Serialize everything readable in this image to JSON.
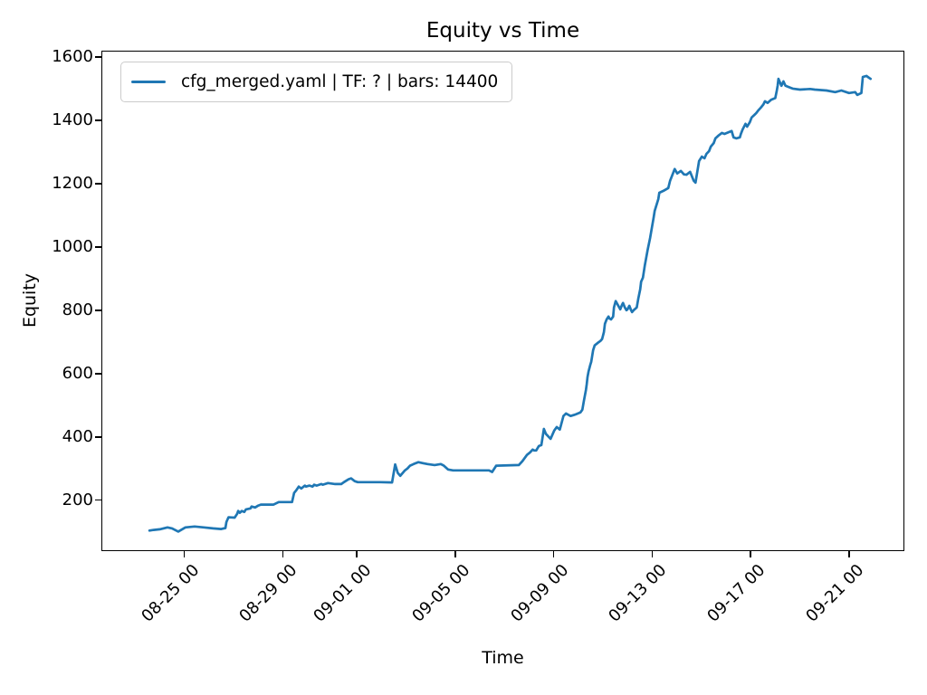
{
  "chart_data": {
    "type": "line",
    "title": "Equity vs Time",
    "xlabel": "Time",
    "ylabel": "Equity",
    "grid": false,
    "legend_position": "upper left",
    "line_color": "#1f77b4",
    "frame_color": "#000000",
    "legend_border_color": "#cbcbcb",
    "ylim": [
      42,
      1617
    ],
    "xlim_hours_since_aug1": [
      496,
      1277
    ],
    "y_ticks": [
      200,
      400,
      600,
      800,
      1000,
      1200,
      1400,
      1600
    ],
    "x_ticks": [
      {
        "label": "08-25 00",
        "t": "08-25 00:00"
      },
      {
        "label": "08-29 00",
        "t": "08-29 00:00"
      },
      {
        "label": "09-01 00",
        "t": "09-01 00:00"
      },
      {
        "label": "09-05 00",
        "t": "09-05 00:00"
      },
      {
        "label": "09-09 00",
        "t": "09-09 00:00"
      },
      {
        "label": "09-13 00",
        "t": "09-13 00:00"
      },
      {
        "label": "09-17 00",
        "t": "09-17 00:00"
      },
      {
        "label": "09-21 00",
        "t": "09-21 00:00"
      }
    ],
    "series": [
      {
        "name": "cfg_merged.yaml | TF: ? | bars: 14400",
        "color": "#1f77b4",
        "points": [
          [
            "08-23 14:00",
            104
          ],
          [
            "08-23 18:00",
            106
          ],
          [
            "08-24 00:00",
            108
          ],
          [
            "08-24 07:30",
            114
          ],
          [
            "08-24 12:00",
            111
          ],
          [
            "08-24 18:00",
            101
          ],
          [
            "08-25 01:00",
            114
          ],
          [
            "08-25 10:00",
            117
          ],
          [
            "08-25 19:00",
            114
          ],
          [
            "08-26 04:00",
            111
          ],
          [
            "08-26 12:00",
            109
          ],
          [
            "08-26 16:00",
            112
          ],
          [
            "08-26 17:00",
            131
          ],
          [
            "08-26 19:00",
            146
          ],
          [
            "08-27 01:00",
            145
          ],
          [
            "08-27 03:30",
            157
          ],
          [
            "08-27 04:30",
            166
          ],
          [
            "08-27 06:00",
            160
          ],
          [
            "08-27 08:00",
            166
          ],
          [
            "08-27 10:30",
            163
          ],
          [
            "08-27 12:00",
            171
          ],
          [
            "08-27 16:30",
            174
          ],
          [
            "08-27 17:30",
            180
          ],
          [
            "08-27 21:00",
            177
          ],
          [
            "08-28 00:00",
            183
          ],
          [
            "08-28 02:30",
            186
          ],
          [
            "08-28 15:00",
            186
          ],
          [
            "08-28 20:00",
            194
          ],
          [
            "08-29 09:00",
            194
          ],
          [
            "08-29 11:00",
            223
          ],
          [
            "08-29 13:00",
            231
          ],
          [
            "08-29 15:30",
            243
          ],
          [
            "08-29 18:00",
            237
          ],
          [
            "08-29 21:30",
            246
          ],
          [
            "08-29 22:30",
            243
          ],
          [
            "08-30 02:00",
            246
          ],
          [
            "08-30 05:00",
            243
          ],
          [
            "08-30 06:30",
            249
          ],
          [
            "08-30 09:00",
            246
          ],
          [
            "08-30 13:30",
            251
          ],
          [
            "08-30 15:00",
            249
          ],
          [
            "08-30 20:00",
            254
          ],
          [
            "08-31 03:00",
            251
          ],
          [
            "08-31 09:00",
            251
          ],
          [
            "08-31 11:30",
            257
          ],
          [
            "08-31 16:00",
            266
          ],
          [
            "08-31 18:30",
            269
          ],
          [
            "08-31 22:00",
            260
          ],
          [
            "09-01 01:00",
            257
          ],
          [
            "09-01 23:00",
            257
          ],
          [
            "09-02 10:30",
            256
          ],
          [
            "09-02 13:30",
            313
          ],
          [
            "09-02 16:00",
            286
          ],
          [
            "09-02 18:30",
            277
          ],
          [
            "09-02 23:00",
            294
          ],
          [
            "09-03 01:30",
            300
          ],
          [
            "09-03 04:00",
            309
          ],
          [
            "09-03 07:30",
            314
          ],
          [
            "09-03 12:00",
            320
          ],
          [
            "09-03 16:30",
            317
          ],
          [
            "09-03 21:00",
            314
          ],
          [
            "09-04 04:00",
            311
          ],
          [
            "09-04 10:00",
            314
          ],
          [
            "09-04 13:00",
            309
          ],
          [
            "09-04 17:00",
            297
          ],
          [
            "09-04 22:00",
            294
          ],
          [
            "09-06 09:00",
            294
          ],
          [
            "09-06 12:00",
            289
          ],
          [
            "09-06 16:00",
            309
          ],
          [
            "09-07 14:00",
            311
          ],
          [
            "09-07 17:30",
            323
          ],
          [
            "09-07 22:00",
            343
          ],
          [
            "09-08 01:00",
            351
          ],
          [
            "09-08 03:30",
            360
          ],
          [
            "09-08 05:00",
            357
          ],
          [
            "09-08 07:00",
            357
          ],
          [
            "09-08 09:30",
            371
          ],
          [
            "09-08 12:00",
            374
          ],
          [
            "09-08 14:30",
            425
          ],
          [
            "09-08 16:30",
            409
          ],
          [
            "09-08 21:00",
            394
          ],
          [
            "09-09 00:30",
            420
          ],
          [
            "09-09 03:00",
            431
          ],
          [
            "09-09 06:00",
            423
          ],
          [
            "09-09 09:30",
            466
          ],
          [
            "09-09 12:00",
            474
          ],
          [
            "09-09 16:30",
            466
          ],
          [
            "09-09 21:30",
            471
          ],
          [
            "09-10 02:00",
            477
          ],
          [
            "09-10 04:00",
            486
          ],
          [
            "09-10 05:30",
            514
          ],
          [
            "09-10 07:30",
            549
          ],
          [
            "09-10 08:15",
            566
          ],
          [
            "09-10 09:00",
            589
          ],
          [
            "09-10 10:00",
            606
          ],
          [
            "09-10 11:45",
            628
          ],
          [
            "09-10 12:40",
            637
          ],
          [
            "09-10 14:30",
            674
          ],
          [
            "09-10 16:00",
            689
          ],
          [
            "09-10 19:00",
            697
          ],
          [
            "09-10 21:30",
            703
          ],
          [
            "09-10 23:15",
            709
          ],
          [
            "09-11 01:00",
            731
          ],
          [
            "09-11 02:00",
            757
          ],
          [
            "09-11 03:40",
            771
          ],
          [
            "09-11 05:30",
            780
          ],
          [
            "09-11 06:20",
            774
          ],
          [
            "09-11 08:00",
            771
          ],
          [
            "09-11 10:00",
            780
          ],
          [
            "09-11 10:45",
            809
          ],
          [
            "09-11 12:30",
            829
          ],
          [
            "09-11 15:00",
            814
          ],
          [
            "09-11 17:00",
            803
          ],
          [
            "09-11 18:40",
            817
          ],
          [
            "09-11 19:35",
            823
          ],
          [
            "09-11 21:20",
            809
          ],
          [
            "09-11 23:00",
            800
          ],
          [
            "09-12 00:00",
            803
          ],
          [
            "09-12 01:45",
            814
          ],
          [
            "09-12 03:30",
            800
          ],
          [
            "09-12 04:25",
            794
          ],
          [
            "09-12 06:00",
            800
          ],
          [
            "09-12 09:00",
            809
          ],
          [
            "09-12 10:30",
            837
          ],
          [
            "09-12 12:20",
            866
          ],
          [
            "09-12 13:15",
            890
          ],
          [
            "09-12 15:00",
            903
          ],
          [
            "09-12 16:45",
            940
          ],
          [
            "09-12 19:30",
            989
          ],
          [
            "09-12 22:00",
            1028
          ],
          [
            "09-13 00:00",
            1066
          ],
          [
            "09-13 01:30",
            1094
          ],
          [
            "09-13 02:30",
            1114
          ],
          [
            "09-13 06:00",
            1151
          ],
          [
            "09-13 07:00",
            1171
          ],
          [
            "09-13 11:00",
            1177
          ],
          [
            "09-13 15:45",
            1186
          ],
          [
            "09-13 17:30",
            1209
          ],
          [
            "09-13 22:00",
            1246
          ],
          [
            "09-14 00:30",
            1232
          ],
          [
            "09-14 04:00",
            1240
          ],
          [
            "09-14 07:00",
            1229
          ],
          [
            "09-14 09:30",
            1228
          ],
          [
            "09-14 13:00",
            1237
          ],
          [
            "09-14 16:30",
            1209
          ],
          [
            "09-14 18:15",
            1203
          ],
          [
            "09-14 21:45",
            1271
          ],
          [
            "09-15 00:30",
            1285
          ],
          [
            "09-15 03:00",
            1280
          ],
          [
            "09-15 05:00",
            1294
          ],
          [
            "09-15 07:30",
            1303
          ],
          [
            "09-15 09:15",
            1317
          ],
          [
            "09-15 12:00",
            1328
          ],
          [
            "09-15 13:40",
            1343
          ],
          [
            "09-15 16:20",
            1351
          ],
          [
            "09-15 20:00",
            1360
          ],
          [
            "09-15 22:30",
            1357
          ],
          [
            "09-16 03:00",
            1363
          ],
          [
            "09-16 05:30",
            1366
          ],
          [
            "09-16 07:20",
            1346
          ],
          [
            "09-16 10:00",
            1343
          ],
          [
            "09-16 13:30",
            1346
          ],
          [
            "09-16 14:30",
            1357
          ],
          [
            "09-16 16:10",
            1371
          ],
          [
            "09-16 19:00",
            1389
          ],
          [
            "09-16 20:35",
            1380
          ],
          [
            "09-16 23:15",
            1394
          ],
          [
            "09-17 01:00",
            1409
          ],
          [
            "09-17 03:40",
            1417
          ],
          [
            "09-17 05:30",
            1423
          ],
          [
            "09-17 07:10",
            1430
          ],
          [
            "09-17 10:00",
            1440
          ],
          [
            "09-17 12:30",
            1450
          ],
          [
            "09-17 14:00",
            1460
          ],
          [
            "09-17 16:30",
            1455
          ],
          [
            "09-17 20:00",
            1465
          ],
          [
            "09-18 00:00",
            1470
          ],
          [
            "09-18 01:30",
            1494
          ],
          [
            "09-18 02:20",
            1509
          ],
          [
            "09-18 03:10",
            1531
          ],
          [
            "09-18 05:00",
            1517
          ],
          [
            "09-18 06:00",
            1509
          ],
          [
            "09-18 08:00",
            1523
          ],
          [
            "09-18 10:00",
            1509
          ],
          [
            "09-18 14:40",
            1503
          ],
          [
            "09-18 17:00",
            1500
          ],
          [
            "09-19 00:00",
            1497
          ],
          [
            "09-19 10:00",
            1499
          ],
          [
            "09-19 14:30",
            1497
          ],
          [
            "09-20 02:00",
            1494
          ],
          [
            "09-20 10:30",
            1489
          ],
          [
            "09-20 16:30",
            1494
          ],
          [
            "09-21 00:00",
            1486
          ],
          [
            "09-21 06:00",
            1489
          ],
          [
            "09-21 08:00",
            1480
          ],
          [
            "09-21 12:00",
            1486
          ],
          [
            "09-21 13:20",
            1537
          ],
          [
            "09-21 17:00",
            1540
          ],
          [
            "09-21 19:30",
            1534
          ],
          [
            "09-21 21:00",
            1531
          ]
        ]
      }
    ]
  }
}
